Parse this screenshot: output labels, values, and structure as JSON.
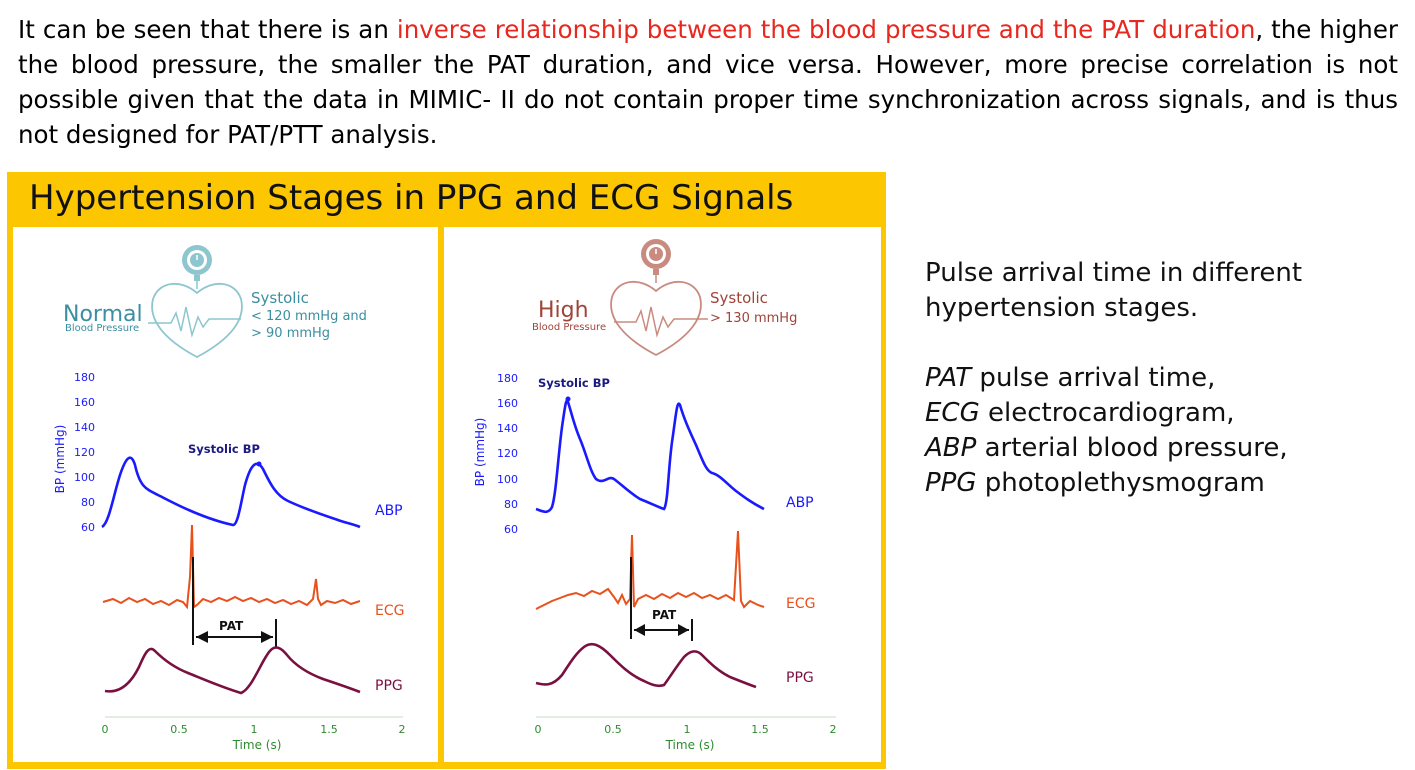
{
  "intro": {
    "before": "It can be seen that there is an ",
    "highlight": "inverse relationship between the blood pressure and the PAT duration",
    "after": ", the higher the blood pressure, the smaller the PAT duration, and vice versa. However, more precise correlation is not possible given that the data in MIMIC- II do not contain proper time synchronization across signals, and is thus not designed for PAT/PTT analysis."
  },
  "colors": {
    "highlight": "#e8271f",
    "frame": "#fcc700",
    "abp": "#1a1aff",
    "ecg": "#e8511c",
    "ppg": "#7a1040",
    "axis_label": "#2e8b2e",
    "normal_icon": "#8ec6cf",
    "high_icon": "#c98b7f"
  },
  "figure": {
    "title": "Hypertension Stages in PPG and ECG Signals",
    "panels": [
      {
        "id": "normal",
        "stage_word": "Normal",
        "stage_sub": "Blood Pressure",
        "systolic_title": "Systolic",
        "systolic_line1": "< 120 mmHg and",
        "systolic_line2": "> 90 mmHg",
        "systolic_bp_label": "Systolic BP",
        "y_axis_label": "BP (mmHg)",
        "y_ticks": [
          "180",
          "160",
          "140",
          "120",
          "100",
          "80",
          "60"
        ],
        "x_ticks": [
          "0",
          "0.5",
          "1",
          "1.5",
          "2"
        ],
        "x_axis_label": "Time (s)",
        "signal_labels": {
          "abp": "ABP",
          "ecg": "ECG",
          "ppg": "PPG"
        },
        "pat_label": "PAT"
      },
      {
        "id": "high",
        "stage_word": "High",
        "stage_sub": "Blood Pressure",
        "systolic_title": "Systolic",
        "systolic_line1": "> 130 mmHg",
        "systolic_bp_label": "Systolic BP",
        "y_axis_label": "BP (mmHg)",
        "y_ticks": [
          "180",
          "160",
          "140",
          "120",
          "100",
          "80",
          "60"
        ],
        "x_ticks": [
          "0",
          "0.5",
          "1",
          "1.5",
          "2"
        ],
        "x_axis_label": "Time (s)",
        "signal_labels": {
          "abp": "ABP",
          "ecg": "ECG",
          "ppg": "PPG"
        },
        "pat_label": "PAT"
      }
    ]
  },
  "caption": {
    "line1": "Pulse arrival time in different hypertension stages.",
    "defs": [
      {
        "abbr": "PAT",
        "text": " pulse arrival time,"
      },
      {
        "abbr": "ECG",
        "text": " electrocardiogram,"
      },
      {
        "abbr": "ABP",
        "text": " arterial blood pressure,"
      },
      {
        "abbr": "PPG",
        "text": " photoplethysmogram"
      }
    ]
  }
}
